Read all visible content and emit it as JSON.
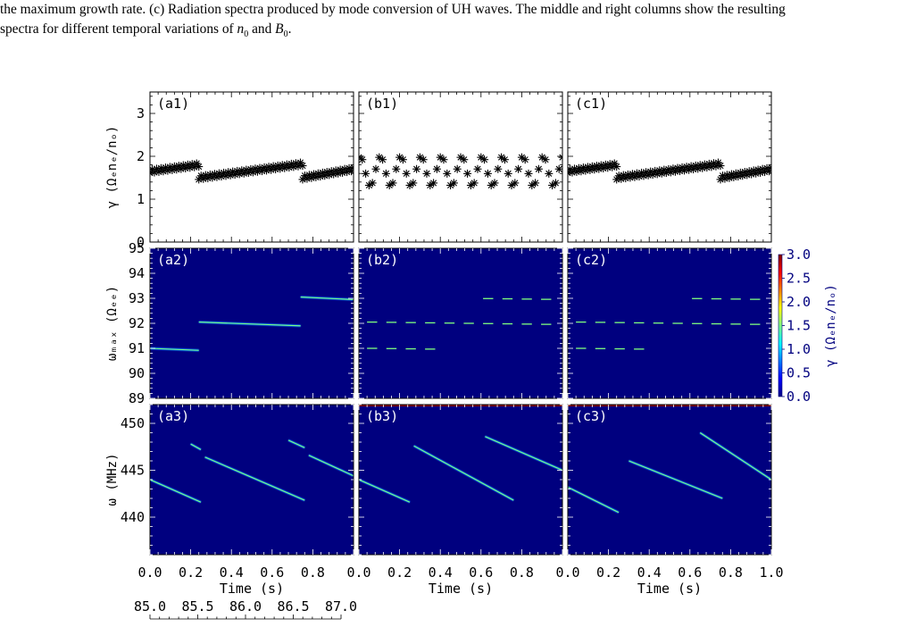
{
  "caption": {
    "line1": "the maximum growth rate. (c) Radiation spectra produced by mode conversion of UH waves. The middle and right columns show the resulting",
    "line2_pre": "spectra for different temporal variations of ",
    "n_sym": "n",
    "n_sub": "0",
    "and_text": " and ",
    "b_sym": "B",
    "b_sub": "0",
    "line2_post": "."
  },
  "figure": {
    "panel_labels": [
      "(a1)",
      "(b1)",
      "(c1)",
      "(a2)",
      "(b2)",
      "(c2)",
      "(a3)",
      "(b3)",
      "(c3)"
    ],
    "row1": {
      "ylabel": "γ (Ωₑnₑ/nₒ)",
      "ylim": [
        0,
        3.5
      ],
      "yticks": [
        "0",
        "1",
        "2",
        "3"
      ]
    },
    "row2": {
      "ylabel": "ωₘₐₓ (Ωₑₑ)",
      "ylim": [
        89,
        95
      ],
      "yticks": [
        "89",
        "90",
        "91",
        "92",
        "93",
        "94",
        "95"
      ]
    },
    "row3": {
      "ylabel": "ω (MHz)",
      "ylim": [
        436,
        452
      ],
      "yticks": [
        "440",
        "445",
        "450"
      ]
    },
    "colorbar": {
      "label": "γ (Ωₑnₑ/nₒ)",
      "range": [
        0,
        3
      ],
      "ticks": [
        "0.0",
        "0.5",
        "1.0",
        "1.5",
        "2.0",
        "2.5",
        "3.0"
      ],
      "colors": [
        "#00007f",
        "#0000ff",
        "#007fff",
        "#00ffff",
        "#7fff7f",
        "#ffff00",
        "#ff7f00",
        "#ff0000",
        "#7f0000"
      ]
    },
    "xaxis": {
      "label": "Time (s)",
      "ticks_col1": [
        "0.0",
        "0.2",
        "0.4",
        "0.6",
        "0.8"
      ],
      "ticks_col2": [
        "0.0",
        "0.2",
        "0.4",
        "0.6",
        "0.8"
      ],
      "ticks_col3": [
        "0.0",
        "0.2",
        "0.4",
        "0.6",
        "0.8",
        "1.0"
      ],
      "secondary_ticks": [
        "85.0",
        "85.5",
        "86.0",
        "86.5",
        "87.0"
      ]
    }
  },
  "chart_data": [
    {
      "type": "scatter",
      "panel": "(a1)",
      "x_range": [
        0,
        1
      ],
      "segments": [
        {
          "x": [
            0.0,
            0.24
          ],
          "y": [
            1.65,
            1.8
          ]
        },
        {
          "x": [
            0.24,
            0.75
          ],
          "y": [
            1.5,
            1.82
          ]
        },
        {
          "x": [
            0.75,
            1.0
          ],
          "y": [
            1.5,
            1.7
          ]
        }
      ]
    },
    {
      "type": "scatter",
      "panel": "(b1)",
      "x_range": [
        0,
        1
      ],
      "oscillation": {
        "mean": 1.65,
        "amplitude": 0.35,
        "cycles": 10
      }
    },
    {
      "type": "scatter",
      "panel": "(c1)",
      "x_range": [
        0,
        1
      ],
      "segments": [
        {
          "x": [
            0.0,
            0.24
          ],
          "y": [
            1.65,
            1.8
          ]
        },
        {
          "x": [
            0.24,
            0.75
          ],
          "y": [
            1.5,
            1.82
          ]
        },
        {
          "x": [
            0.75,
            1.0
          ],
          "y": [
            1.5,
            1.7
          ]
        }
      ]
    },
    {
      "type": "heatmap",
      "panel": "(a2)",
      "lines": [
        {
          "x": [
            0.0,
            0.24
          ],
          "y": [
            91.0,
            90.92
          ]
        },
        {
          "x": [
            0.24,
            0.74
          ],
          "y": [
            92.05,
            91.9
          ]
        },
        {
          "x": [
            0.74,
            1.0
          ],
          "y": [
            93.05,
            92.95
          ]
        }
      ]
    },
    {
      "type": "heatmap",
      "panel": "(b2)",
      "dashes_y": [
        91.0,
        92.05,
        93.05
      ]
    },
    {
      "type": "heatmap",
      "panel": "(c2)",
      "dashes_y": [
        91.0,
        92.05,
        93.05
      ]
    },
    {
      "type": "heatmap",
      "panel": "(a3)",
      "lines": [
        {
          "x": [
            0.0,
            0.25
          ],
          "y": [
            444.0,
            441.6
          ]
        },
        {
          "x": [
            0.2,
            0.25
          ],
          "y": [
            447.8,
            447.2
          ]
        },
        {
          "x": [
            0.27,
            0.76
          ],
          "y": [
            446.4,
            441.8
          ]
        },
        {
          "x": [
            0.68,
            0.76
          ],
          "y": [
            448.2,
            447.4
          ]
        },
        {
          "x": [
            0.78,
            1.0
          ],
          "y": [
            446.6,
            444.4
          ]
        }
      ]
    },
    {
      "type": "heatmap",
      "panel": "(b3)",
      "lines": [
        {
          "x": [
            0.0,
            0.25
          ],
          "y": [
            444.0,
            441.6
          ]
        },
        {
          "x": [
            0.27,
            0.76
          ],
          "y": [
            447.6,
            441.8
          ]
        },
        {
          "x": [
            0.62,
            1.0
          ],
          "y": [
            448.6,
            445.0
          ]
        }
      ]
    },
    {
      "type": "heatmap",
      "panel": "(c3)",
      "lines": [
        {
          "x": [
            0.0,
            0.25
          ],
          "y": [
            443.2,
            440.5
          ]
        },
        {
          "x": [
            0.3,
            0.76
          ],
          "y": [
            446.0,
            442.0
          ]
        },
        {
          "x": [
            0.65,
            1.0
          ],
          "y": [
            449.0,
            444.0
          ]
        }
      ]
    }
  ]
}
